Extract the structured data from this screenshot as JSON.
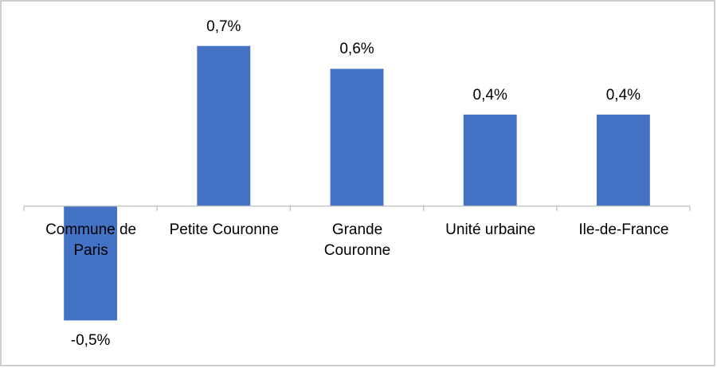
{
  "chart_data": {
    "type": "bar",
    "categories": [
      "Commune de Paris",
      "Petite Couronne",
      "Grande Couronne",
      "Unité urbaine",
      "Ile-de-France"
    ],
    "values": [
      -0.5,
      0.7,
      0.6,
      0.4,
      0.4
    ],
    "value_labels": [
      "-0,5%",
      "0,7%",
      "0,6%",
      "0,4%",
      "0,4%"
    ],
    "color": "#4472c4",
    "ylim": [
      -0.6,
      0.8
    ]
  }
}
